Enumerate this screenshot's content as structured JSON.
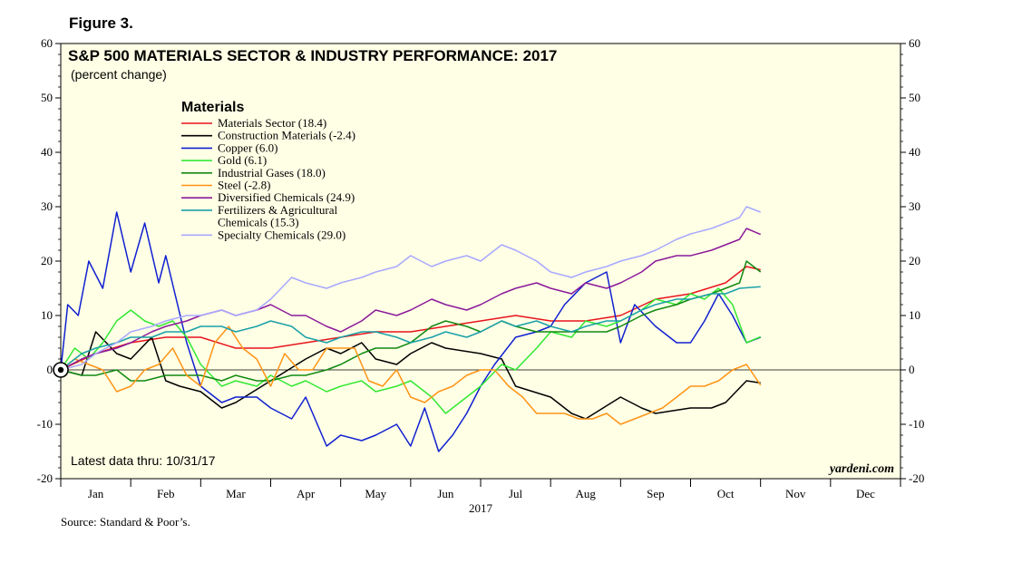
{
  "figure_label": "Figure 3.",
  "source": "Source: Standard & Poor’s.",
  "latest_data": "Latest data thru: 10/31/17",
  "watermark": "yardeni.com",
  "chart_data": {
    "type": "line",
    "title": "S&P 500 MATERIALS SECTOR & INDUSTRY PERFORMANCE: 2017",
    "subtitle": "(percent change)",
    "xlabel": "2017",
    "ylabel": "",
    "ylim": [
      -20,
      60
    ],
    "yticks": [
      -20,
      -10,
      0,
      10,
      20,
      30,
      40,
      50,
      60
    ],
    "months": [
      "Jan",
      "Feb",
      "Mar",
      "Apr",
      "May",
      "Jun",
      "Jul",
      "Aug",
      "Sep",
      "Oct",
      "Nov",
      "Dec"
    ],
    "x_unit": "month index (0 = Jan 1, 12 = Dec 31)",
    "xlim": [
      0,
      12
    ],
    "grid": false,
    "zero_line": true,
    "legend_title": "Materials",
    "legend_position": "top-left",
    "legend_entries": [
      "Materials Sector (18.4)",
      "Construction Materials (-2.4)",
      "Copper (6.0)",
      "Gold (6.1)",
      "Industrial Gases (18.0)",
      "Steel (-2.8)",
      "Diversified Chemicals (24.9)",
      "Fertilizers & Agricultural",
      "Chemicals (15.3)",
      "Specialty Chemicals (29.0)"
    ],
    "series": [
      {
        "name": "Materials Sector (18.4)",
        "color": "#e8141c",
        "x": [
          0,
          0.5,
          1.0,
          1.5,
          2.0,
          2.5,
          3.0,
          3.5,
          4.0,
          4.5,
          5.0,
          5.5,
          6.0,
          6.5,
          7.0,
          7.5,
          8.0,
          8.5,
          9.0,
          9.5,
          9.8,
          10.0
        ],
        "y": [
          0,
          3,
          5,
          6,
          6,
          4,
          4,
          5,
          6,
          7,
          7,
          8,
          9,
          10,
          9,
          9,
          10,
          13,
          14,
          16,
          19,
          18.4
        ]
      },
      {
        "name": "Construction Materials (-2.4)",
        "color": "#000000",
        "x": [
          0,
          0.3,
          0.5,
          0.8,
          1.0,
          1.3,
          1.5,
          1.7,
          2.0,
          2.3,
          2.5,
          3.0,
          3.5,
          3.8,
          4.0,
          4.3,
          4.5,
          4.8,
          5.0,
          5.3,
          5.5,
          6.0,
          6.3,
          6.5,
          7.0,
          7.3,
          7.5,
          8.0,
          8.3,
          8.5,
          9.0,
          9.3,
          9.5,
          9.8,
          10.0
        ],
        "y": [
          0,
          -1,
          7,
          3,
          2,
          6,
          -2,
          -3,
          -4,
          -7,
          -6,
          -2,
          2,
          4,
          3,
          5,
          2,
          1,
          3,
          5,
          4,
          3,
          2,
          -3,
          -5,
          -8,
          -9,
          -5,
          -7,
          -8,
          -7,
          -7,
          -6,
          -2,
          -2.4
        ]
      },
      {
        "name": "Copper (6.0)",
        "color": "#1020d0",
        "x": [
          0,
          0.1,
          0.25,
          0.4,
          0.6,
          0.8,
          1.0,
          1.2,
          1.4,
          1.5,
          1.8,
          2.0,
          2.3,
          2.5,
          2.8,
          3.0,
          3.3,
          3.5,
          3.8,
          4.0,
          4.3,
          4.5,
          4.8,
          5.0,
          5.2,
          5.4,
          5.6,
          5.8,
          6.0,
          6.2,
          6.5,
          6.8,
          7.0,
          7.2,
          7.5,
          7.8,
          8.0,
          8.2,
          8.5,
          8.8,
          9.0,
          9.2,
          9.4,
          9.5,
          9.6,
          9.8,
          10.0
        ],
        "y": [
          0,
          12,
          10,
          20,
          15,
          29,
          18,
          27,
          16,
          21,
          5,
          -3,
          -6,
          -5,
          -5,
          -7,
          -9,
          -5,
          -14,
          -12,
          -13,
          -12,
          -10,
          -14,
          -7,
          -15,
          -12,
          -8,
          -3,
          1,
          6,
          7,
          8,
          12,
          16,
          18,
          5,
          12,
          8,
          5,
          5,
          9,
          14,
          12,
          10,
          5,
          6.0
        ]
      },
      {
        "name": "Gold (6.1)",
        "color": "#33e833",
        "x": [
          0,
          0.2,
          0.4,
          0.6,
          0.8,
          1.0,
          1.2,
          1.4,
          1.6,
          1.8,
          2.0,
          2.3,
          2.5,
          2.8,
          3.0,
          3.3,
          3.5,
          3.8,
          4.0,
          4.3,
          4.5,
          4.8,
          5.0,
          5.3,
          5.5,
          5.8,
          6.0,
          6.3,
          6.5,
          6.8,
          7.0,
          7.3,
          7.5,
          7.8,
          8.0,
          8.3,
          8.5,
          8.8,
          9.0,
          9.2,
          9.4,
          9.6,
          9.8,
          10.0
        ],
        "y": [
          0,
          4,
          2,
          5,
          9,
          11,
          9,
          8,
          9,
          6,
          1,
          -3,
          -2,
          -3,
          -1,
          -3,
          -2,
          -4,
          -3,
          -2,
          -4,
          -3,
          -2,
          -5,
          -8,
          -5,
          -3,
          1,
          0,
          4,
          7,
          6,
          9,
          8,
          9,
          11,
          13,
          12,
          14,
          13,
          15,
          12,
          5,
          6.1
        ]
      },
      {
        "name": "Industrial Gases (18.0)",
        "color": "#128a12",
        "x": [
          0,
          0.3,
          0.5,
          0.8,
          1.0,
          1.2,
          1.5,
          1.8,
          2.0,
          2.3,
          2.5,
          2.8,
          3.0,
          3.3,
          3.5,
          3.8,
          4.0,
          4.3,
          4.5,
          4.8,
          5.0,
          5.3,
          5.5,
          5.8,
          6.0,
          6.3,
          6.5,
          6.8,
          7.0,
          7.3,
          7.5,
          7.8,
          8.0,
          8.3,
          8.5,
          8.8,
          9.0,
          9.3,
          9.5,
          9.7,
          9.8,
          10.0
        ],
        "y": [
          0,
          -1,
          -1,
          0,
          -2,
          -2,
          -1,
          -1,
          -1,
          -2,
          -1,
          -2,
          -2,
          -1,
          -1,
          0,
          1,
          3,
          4,
          4,
          5,
          8,
          9,
          8,
          7,
          9,
          8,
          7,
          7,
          7,
          7,
          7,
          8,
          10,
          11,
          12,
          13,
          14,
          15,
          16,
          20,
          18.0
        ]
      },
      {
        "name": "Steel (-2.8)",
        "color": "#ff9415",
        "x": [
          0,
          0.2,
          0.4,
          0.6,
          0.8,
          1.0,
          1.2,
          1.4,
          1.6,
          1.8,
          2.0,
          2.2,
          2.4,
          2.6,
          2.8,
          3.0,
          3.2,
          3.4,
          3.6,
          3.8,
          4.0,
          4.2,
          4.4,
          4.6,
          4.8,
          5.0,
          5.2,
          5.4,
          5.6,
          5.8,
          6.0,
          6.2,
          6.4,
          6.6,
          6.8,
          7.0,
          7.2,
          7.4,
          7.6,
          7.8,
          8.0,
          8.2,
          8.4,
          8.6,
          8.8,
          9.0,
          9.2,
          9.4,
          9.6,
          9.8,
          10.0
        ],
        "y": [
          0,
          2,
          1,
          0,
          -4,
          -3,
          0,
          1,
          4,
          -1,
          -3,
          5,
          8,
          4,
          2,
          -3,
          3,
          0,
          0,
          4,
          4,
          4,
          -2,
          -3,
          0,
          -5,
          -6,
          -4,
          -3,
          -1,
          0,
          0,
          -3,
          -5,
          -8,
          -8,
          -8,
          -9,
          -9,
          -8,
          -10,
          -9,
          -8,
          -7,
          -5,
          -3,
          -3,
          -2,
          0,
          1,
          -2.8
        ]
      },
      {
        "name": "Diversified Chemicals (24.9)",
        "color": "#8a1a9a",
        "x": [
          0,
          0.3,
          0.5,
          0.8,
          1.0,
          1.3,
          1.5,
          1.8,
          2.0,
          2.3,
          2.5,
          2.8,
          3.0,
          3.3,
          3.5,
          3.8,
          4.0,
          4.3,
          4.5,
          4.8,
          5.0,
          5.3,
          5.5,
          5.8,
          6.0,
          6.3,
          6.5,
          6.8,
          7.0,
          7.3,
          7.5,
          7.8,
          8.0,
          8.3,
          8.5,
          8.8,
          9.0,
          9.3,
          9.5,
          9.7,
          9.8,
          10.0
        ],
        "y": [
          0,
          2,
          3,
          4,
          5,
          7,
          8,
          9,
          10,
          11,
          10,
          11,
          12,
          10,
          10,
          8,
          7,
          9,
          11,
          10,
          11,
          13,
          12,
          11,
          12,
          14,
          15,
          16,
          15,
          14,
          16,
          15,
          16,
          18,
          20,
          21,
          21,
          22,
          23,
          24,
          26,
          24.9
        ]
      },
      {
        "name": "Fertilizers & Agricultural Chemicals (15.3)",
        "color": "#1aa0a8",
        "x": [
          0,
          0.3,
          0.5,
          0.8,
          1.0,
          1.3,
          1.5,
          1.8,
          2.0,
          2.3,
          2.5,
          2.8,
          3.0,
          3.3,
          3.5,
          3.8,
          4.0,
          4.3,
          4.5,
          4.8,
          5.0,
          5.3,
          5.5,
          5.8,
          6.0,
          6.3,
          6.5,
          6.8,
          7.0,
          7.3,
          7.5,
          7.8,
          8.0,
          8.3,
          8.5,
          8.8,
          9.0,
          9.3,
          9.5,
          9.7,
          10.0
        ],
        "y": [
          0,
          3,
          4,
          5,
          6,
          6,
          7,
          7,
          8,
          8,
          7,
          8,
          9,
          8,
          6,
          5,
          6,
          7,
          7,
          6,
          5,
          6,
          7,
          6,
          7,
          9,
          8,
          9,
          8,
          7,
          8,
          9,
          9,
          11,
          12,
          13,
          13,
          14,
          14,
          15,
          15.3
        ]
      },
      {
        "name": "Specialty Chemicals (29.0)",
        "color": "#a8a8ff",
        "x": [
          0,
          0.3,
          0.5,
          0.8,
          1.0,
          1.3,
          1.5,
          1.8,
          2.0,
          2.3,
          2.5,
          2.8,
          3.0,
          3.3,
          3.5,
          3.8,
          4.0,
          4.3,
          4.5,
          4.8,
          5.0,
          5.3,
          5.5,
          5.8,
          6.0,
          6.3,
          6.5,
          6.8,
          7.0,
          7.3,
          7.5,
          7.8,
          8.0,
          8.3,
          8.5,
          8.8,
          9.0,
          9.3,
          9.5,
          9.7,
          9.8,
          10.0
        ],
        "y": [
          0,
          1,
          3,
          5,
          7,
          8,
          9,
          10,
          10,
          11,
          10,
          11,
          13,
          17,
          16,
          15,
          16,
          17,
          18,
          19,
          21,
          19,
          20,
          21,
          20,
          23,
          22,
          20,
          18,
          17,
          18,
          19,
          20,
          21,
          22,
          24,
          25,
          26,
          27,
          28,
          30,
          29.0
        ]
      }
    ]
  }
}
